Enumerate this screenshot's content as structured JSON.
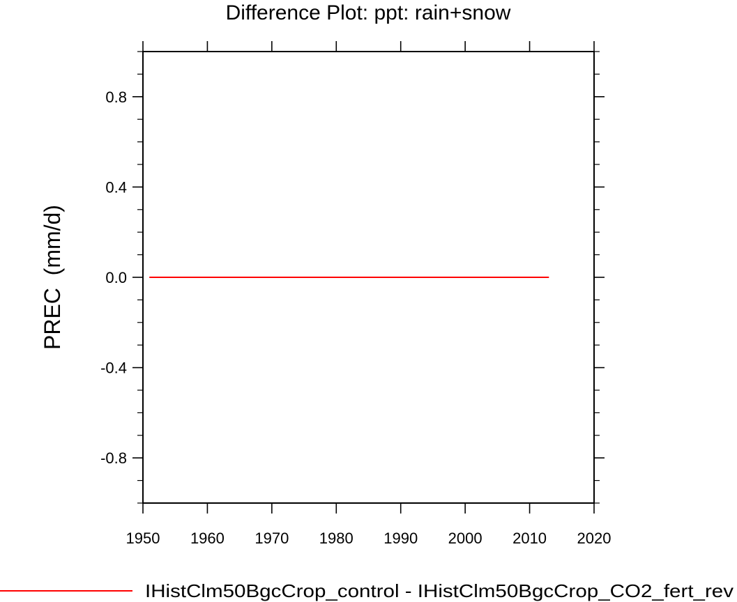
{
  "chart_data": {
    "type": "line",
    "title": "Difference Plot: ppt: rain+snow",
    "xlabel": "",
    "ylabel": "PREC  (mm/d)",
    "xlim": [
      1950,
      2020
    ],
    "ylim": [
      -1.0,
      1.0
    ],
    "x_ticks": [
      1950,
      1960,
      1970,
      1980,
      1990,
      2000,
      2010,
      2020
    ],
    "x_tick_labels": [
      "1950",
      "1960",
      "1970",
      "1980",
      "1990",
      "2000",
      "2010",
      "2020"
    ],
    "y_ticks": [
      -0.8,
      -0.4,
      0.0,
      0.4,
      0.8
    ],
    "y_tick_labels": [
      "-0.8",
      "-0.4",
      "0.0",
      "0.4",
      "0.8"
    ],
    "grid": false,
    "legend_position": "bottom",
    "series": [
      {
        "name": "IHistClm50BgcCrop_control - IHistClm50BgcCrop_CO2_fert_rev",
        "color": "#ff0000",
        "x": [
          1951,
          1960,
          1970,
          1980,
          1990,
          2000,
          2013
        ],
        "y": [
          0.0,
          0.0,
          0.0,
          0.0,
          0.0,
          0.0,
          0.0
        ]
      }
    ]
  }
}
